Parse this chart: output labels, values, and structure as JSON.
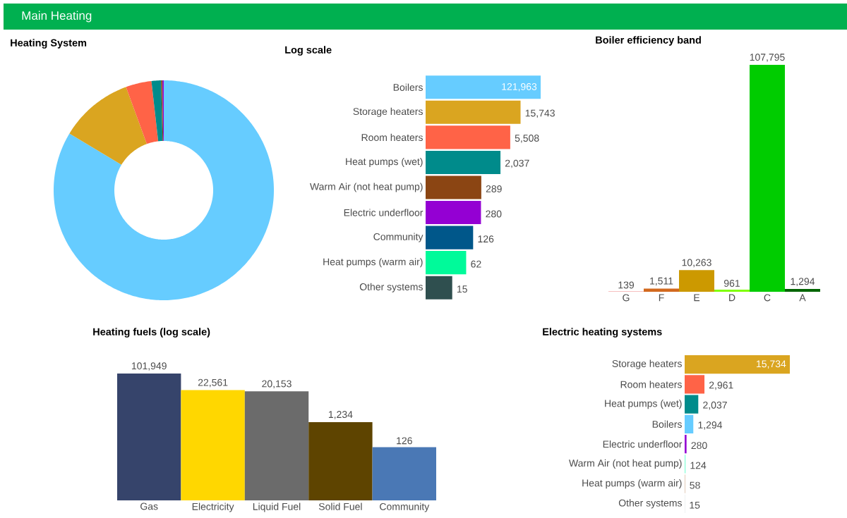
{
  "chart_data": [
    {
      "type": "other",
      "title": "Main Heating"
    },
    {
      "type": "donut",
      "title": "Heating System",
      "categories": [
        null,
        null,
        null,
        null,
        null,
        null
      ],
      "values": [
        83.63,
        10.8,
        3.78,
        1.4,
        0.2,
        0.19
      ],
      "colors": [
        "#66ccff",
        "#daa520",
        "#ff6347",
        "#008b8b",
        "#8b4513",
        "#9400d3"
      ]
    },
    {
      "type": "bar",
      "orientation": "horizontal",
      "title": "Log scale",
      "log": "x",
      "xlim": [
        1,
        121963
      ],
      "tick_labels": "y",
      "categories": [
        "Boilers",
        "Storage heaters",
        "Room heaters",
        "Heat pumps (wet)",
        "Warm Air (not heat pump)",
        "Electric underfloor",
        "Community",
        "Heat pumps (warm air)",
        "Other systems"
      ],
      "values": [
        121963,
        15743,
        5508,
        2037,
        289,
        280,
        126,
        62,
        15
      ],
      "value_labels": [
        "121,963",
        "15,743",
        "5,508",
        "2,037",
        "289",
        "280",
        "126",
        "62",
        "15"
      ],
      "colors": [
        "#66ccff",
        "#daa520",
        "#ff6347",
        "#008b8b",
        "#8b4513",
        "#9400d3",
        "#00578a",
        "#00fa9a",
        "#2f4f4f"
      ]
    },
    {
      "type": "bar",
      "title": "Boiler efficiency band",
      "tick_labels": "x",
      "categories": [
        "G",
        "F",
        "E",
        "D",
        "C",
        "A"
      ],
      "values": [
        139,
        1511,
        10263,
        961,
        107795,
        1294
      ],
      "value_labels": [
        "139",
        "1,511",
        "10,263",
        "961",
        "107,795",
        "1,294"
      ],
      "colors": [
        "#f08080",
        "#d2691e",
        "#cc9900",
        "#7fff00",
        "#00cc00",
        "#006400"
      ]
    },
    {
      "type": "bar",
      "title": "Heating fuels (log scale)",
      "log": "y",
      "ylim": [
        1,
        101949
      ],
      "tick_labels": "x",
      "categories": [
        "Gas",
        "Electricity",
        "Liquid Fuel",
        "Solid Fuel",
        "Community"
      ],
      "values": [
        101949,
        22561,
        20153,
        1234,
        126
      ],
      "value_labels": [
        "101,949",
        "22,561",
        "20,153",
        "1,234",
        "126"
      ],
      "colors": [
        "#36446b",
        "#ffd700",
        "#6b6b6b",
        "#5e4400",
        "#4a78b5"
      ]
    },
    {
      "type": "bar",
      "orientation": "horizontal",
      "title": "Electric heating systems",
      "tick_labels": "y",
      "categories": [
        "Storage heaters",
        "Room heaters",
        "Heat pumps (wet)",
        "Boilers",
        "Electric underfloor",
        "Warm Air (not heat pump)",
        "Heat pumps (warm air)",
        "Other systems"
      ],
      "values": [
        15734,
        2961,
        2037,
        1294,
        280,
        124,
        58,
        15
      ],
      "value_labels": [
        "15,734",
        "2,961",
        "2,037",
        "1,294",
        "280",
        "124",
        "58",
        "15"
      ],
      "colors": [
        "#daa520",
        "#ff6347",
        "#008b8b",
        "#66ccff",
        "#9400d3",
        "#7fffd4",
        "#c8a080",
        "#90a4a4"
      ]
    }
  ]
}
